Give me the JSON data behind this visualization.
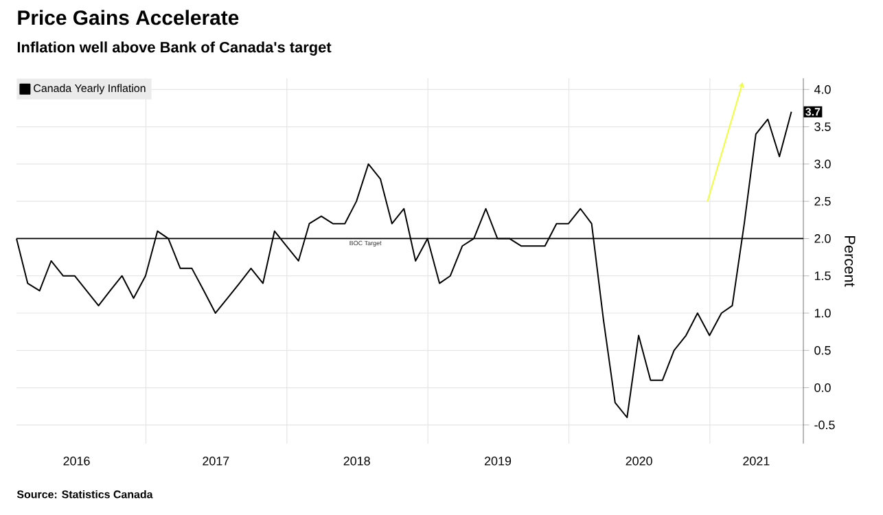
{
  "chart_data": {
    "type": "line",
    "title": "Price Gains Accelerate",
    "subtitle": "Inflation well above Bank of Canada's target",
    "ylabel": "Percent",
    "annotations": [
      "Source: Statistics Canada"
    ],
    "x": [
      "2016-01-31",
      "2016-02-29",
      "2016-03-31",
      "2016-04-30",
      "2016-05-31",
      "2016-06-30",
      "2016-07-31",
      "2016-08-31",
      "2016-09-30",
      "2016-10-31",
      "2016-11-30",
      "2016-12-31",
      "2017-01-31",
      "2017-02-28",
      "2017-03-31",
      "2017-04-30",
      "2017-05-31",
      "2017-06-30",
      "2017-07-31",
      "2017-08-31",
      "2017-09-30",
      "2017-10-31",
      "2017-11-30",
      "2017-12-31",
      "2018-01-31",
      "2018-02-28",
      "2018-03-31",
      "2018-04-30",
      "2018-05-31",
      "2018-06-30",
      "2018-07-31",
      "2018-08-31",
      "2018-09-30",
      "2018-10-31",
      "2018-11-30",
      "2018-12-31",
      "2019-01-31",
      "2019-02-28",
      "2019-03-31",
      "2019-04-30",
      "2019-05-31",
      "2019-06-30",
      "2019-07-31",
      "2019-08-31",
      "2019-09-30",
      "2019-10-31",
      "2019-11-30",
      "2019-12-31",
      "2020-01-31",
      "2020-02-29",
      "2020-03-31",
      "2020-04-30",
      "2020-05-31",
      "2020-06-30",
      "2020-07-31",
      "2020-08-31",
      "2020-09-30",
      "2020-10-31",
      "2020-11-30",
      "2020-12-31",
      "2021-01-31",
      "2021-02-28",
      "2021-03-31",
      "2021-04-30",
      "2021-05-31",
      "2021-06-30",
      "2021-07-31"
    ],
    "series": [
      {
        "name": "Canada Yearly Inflation",
        "color": "#000000",
        "values": [
          2.0,
          1.4,
          1.3,
          1.7,
          1.5,
          1.5,
          1.3,
          1.1,
          1.3,
          1.5,
          1.2,
          1.5,
          2.1,
          2.0,
          1.6,
          1.6,
          1.3,
          1.0,
          1.2,
          1.4,
          1.6,
          1.4,
          2.1,
          1.9,
          1.7,
          2.2,
          2.3,
          2.2,
          2.2,
          2.5,
          3.0,
          2.8,
          2.2,
          2.4,
          1.7,
          2.0,
          1.4,
          1.5,
          1.9,
          2.0,
          2.4,
          2.0,
          2.0,
          1.9,
          1.9,
          1.9,
          2.2,
          2.2,
          2.4,
          2.2,
          0.9,
          -0.2,
          -0.4,
          0.7,
          0.1,
          0.1,
          0.5,
          0.7,
          1.0,
          0.7,
          1.0,
          1.1,
          2.2,
          3.4,
          3.6,
          3.1,
          3.7
        ],
        "value_labels": [
          null,
          null,
          null,
          null,
          null,
          null,
          null,
          null,
          null,
          null,
          null,
          null,
          null,
          null,
          null,
          null,
          null,
          null,
          null,
          null,
          null,
          null,
          null,
          null,
          null,
          null,
          null,
          null,
          null,
          null,
          null,
          null,
          null,
          null,
          null,
          null,
          null,
          null,
          null,
          null,
          null,
          null,
          null,
          null,
          null,
          null,
          null,
          null,
          null,
          null,
          null,
          null,
          null,
          null,
          null,
          null,
          null,
          null,
          null,
          null,
          null,
          null,
          null,
          null,
          null,
          null,
          "3.7"
        ]
      }
    ],
    "xlim": [
      "2016-01-31",
      "2021-08-31"
    ],
    "xticks": [
      {
        "value": "2016-07-05",
        "label": "2016"
      },
      {
        "value": "2017-01-01",
        "label": null
      },
      {
        "value": "2017-07-01",
        "label": "2017"
      },
      {
        "value": "2018-01-01",
        "label": null
      },
      {
        "value": "2018-07-01",
        "label": "2018"
      },
      {
        "value": "2019-01-01",
        "label": null
      },
      {
        "value": "2019-07-01",
        "label": "2019"
      },
      {
        "value": "2020-01-01",
        "label": null
      },
      {
        "value": "2020-07-01",
        "label": "2020"
      },
      {
        "value": "2021-01-01",
        "label": null
      },
      {
        "value": "2021-05-01",
        "label": "2021"
      }
    ],
    "ylim": [
      -0.75,
      4.15
    ],
    "yticks": [
      {
        "value": -0.5,
        "label": "-0.5"
      },
      {
        "value": 0,
        "label": "0.0"
      },
      {
        "value": 0.5,
        "label": "0.5"
      },
      {
        "value": 1,
        "label": "1.0"
      },
      {
        "value": 1.5,
        "label": "1.5"
      },
      {
        "value": 2,
        "label": "2.0"
      },
      {
        "value": 2.5,
        "label": "2.5"
      },
      {
        "value": 3,
        "label": "3.0"
      },
      {
        "value": 3.5,
        "label": "3.5"
      },
      {
        "value": 4,
        "label": "4.0"
      }
    ],
    "ref_lines": [
      {
        "axis": "y",
        "value": 2.0,
        "label": "BOC Target",
        "color": "#000000"
      }
    ],
    "grid": true,
    "legend": "top left",
    "marker": "none",
    "line_style": "solid"
  }
}
